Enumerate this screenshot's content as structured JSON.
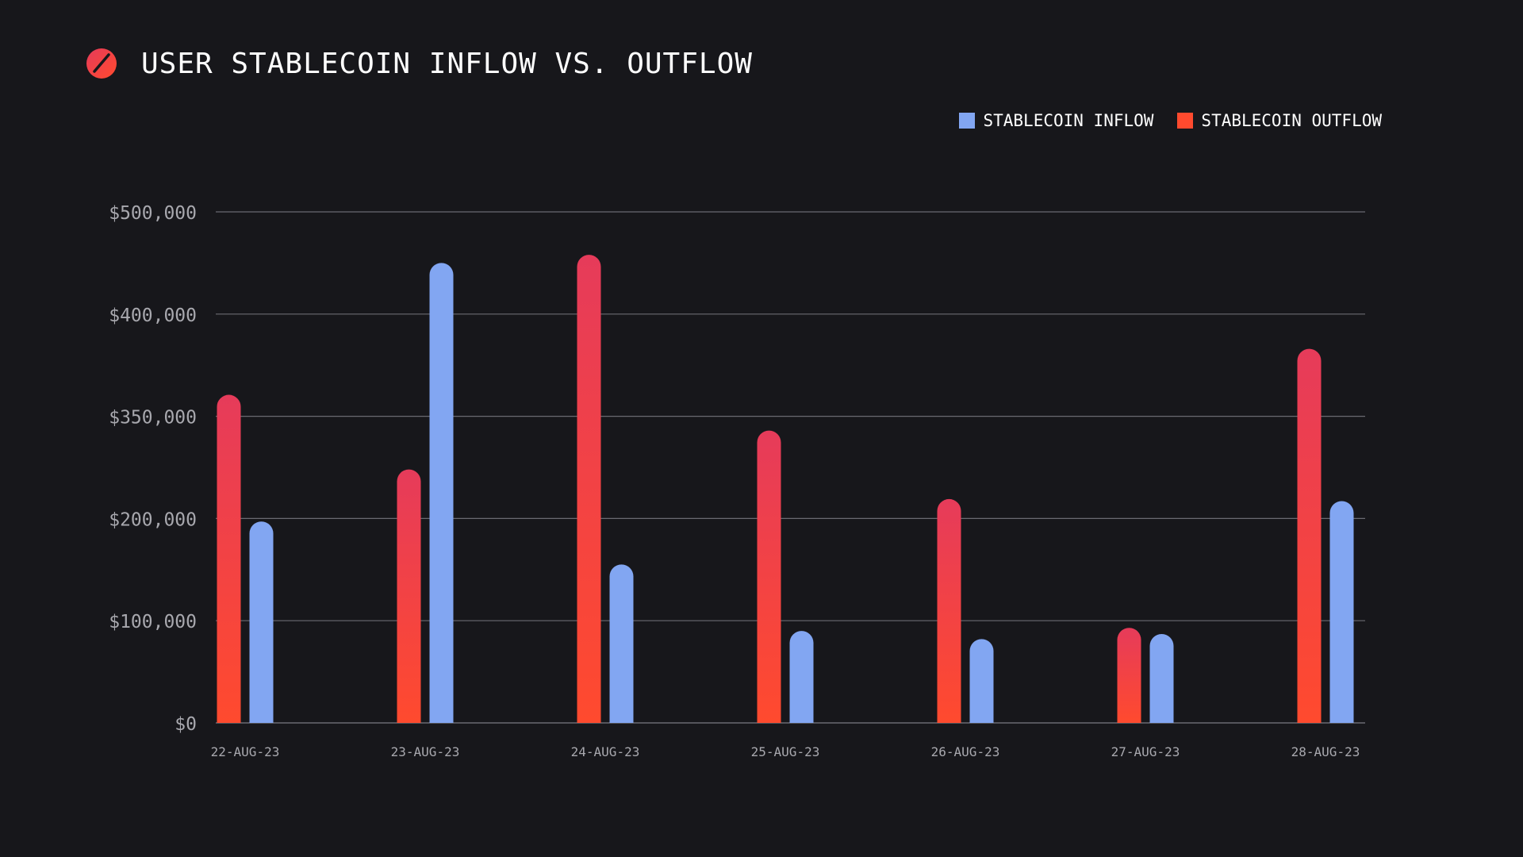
{
  "header": {
    "title": "USER STABLECOIN INFLOW VS. OUTFLOW",
    "logo_icon": "slashed-circle-logo-icon"
  },
  "colors": {
    "background": "#17171b",
    "inflow": "#82a6f2",
    "outflow_top": "#e63b5a",
    "outflow_bottom": "#ff4a2e",
    "grid": "#6a6a72",
    "axis_text": "#a8a8ae"
  },
  "legend": {
    "inflow_label": "STABLECOIN INFLOW",
    "outflow_label": "STABLECOIN OUTFLOW"
  },
  "chart_data": {
    "type": "bar",
    "title": "USER STABLECOIN INFLOW VS. OUTFLOW",
    "xlabel": "",
    "ylabel": "",
    "categories": [
      "22-AUG-23",
      "23-AUG-23",
      "24-AUG-23",
      "25-AUG-23",
      "26-AUG-23",
      "27-AUG-23",
      "28-AUG-23"
    ],
    "y_ticks": [
      "$0",
      "$100,000",
      "$200,000",
      "$350,000",
      "$400,000",
      "$500,000"
    ],
    "grid": true,
    "legend_position": "top-right",
    "note": "Values are given in gridline-index units: the axis labels are placed on evenly spaced gridlines (0..5), so bar heights are expressed on that visual scale.",
    "ylim": [
      0,
      5
    ],
    "series": [
      {
        "name": "STABLECOIN OUTFLOW",
        "values": [
          3.21,
          2.48,
          4.58,
          2.86,
          2.19,
          0.93,
          3.66
        ]
      },
      {
        "name": "STABLECOIN INFLOW",
        "values": [
          1.97,
          4.5,
          1.55,
          0.9,
          0.82,
          0.87,
          2.17
        ]
      }
    ]
  }
}
